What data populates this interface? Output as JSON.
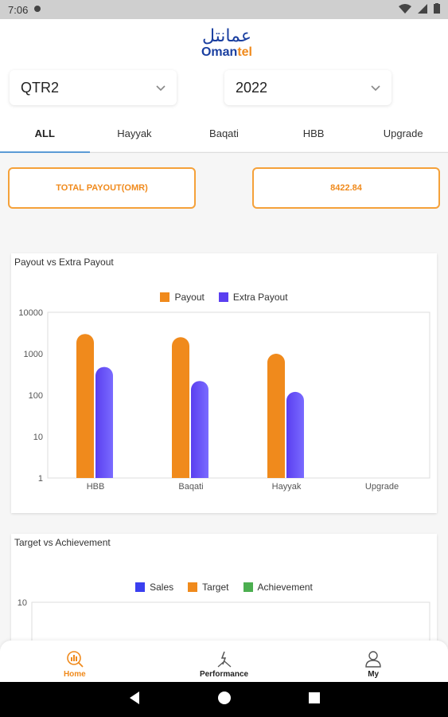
{
  "status": {
    "time": "7:06"
  },
  "brand": {
    "arabic": "عمانتل",
    "name_a": "Oman",
    "name_b": "tel"
  },
  "filters": {
    "quarter": "QTR2",
    "year": "2022"
  },
  "tabs": [
    {
      "label": "ALL",
      "active": true
    },
    {
      "label": "Hayyak"
    },
    {
      "label": "Baqati"
    },
    {
      "label": "HBB"
    },
    {
      "label": "Upgrade"
    }
  ],
  "totals": {
    "label": "TOTAL PAYOUT(OMR)",
    "value": "8422.84"
  },
  "colors": {
    "accent": "#f08a1c",
    "purple": "#5a3ff0",
    "green": "#4caf50",
    "tab_indicator": "#5b9bd5"
  },
  "chart_data": [
    {
      "type": "bar",
      "title": "Payout vs Extra Payout",
      "scale": "log",
      "ylim": [
        1,
        10000
      ],
      "yticks": [
        "10000",
        "1000",
        "100",
        "10",
        "1"
      ],
      "categories": [
        "HBB",
        "Baqati",
        "Hayyak",
        "Upgrade"
      ],
      "series": [
        {
          "name": "Payout",
          "color": "#f08a1c",
          "values": [
            3000,
            2500,
            1000,
            0
          ]
        },
        {
          "name": "Extra Payout",
          "color": "#5a3ff0",
          "values": [
            480,
            220,
            120,
            0
          ]
        }
      ],
      "legend": "top-center"
    },
    {
      "type": "bar",
      "title": "Target vs Achievement",
      "yticks": [
        "10"
      ],
      "series": [
        {
          "name": "Sales",
          "color": "#3a3ff0",
          "values": []
        },
        {
          "name": "Target",
          "color": "#f08a1c",
          "values": []
        },
        {
          "name": "Achievement",
          "color": "#4caf50",
          "values": []
        }
      ],
      "legend": "top-center"
    }
  ],
  "nav": [
    {
      "label": "Home",
      "icon": "home-chart-icon",
      "active": true
    },
    {
      "label": "Performance",
      "icon": "performance-icon"
    },
    {
      "label": "My",
      "icon": "person-icon"
    }
  ]
}
